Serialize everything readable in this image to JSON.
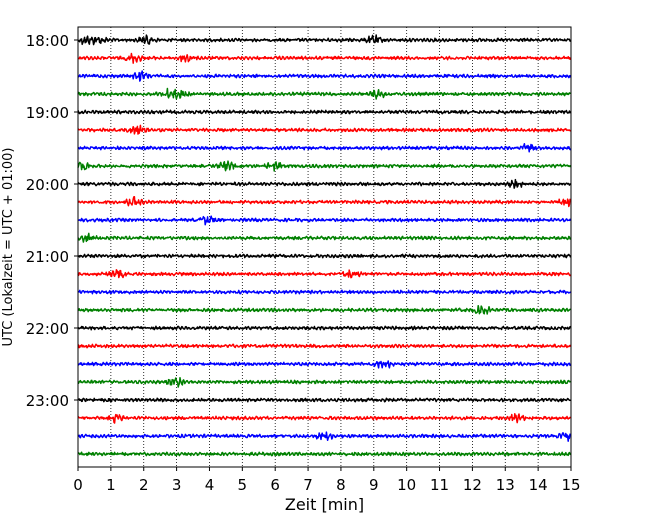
{
  "chart_data": {
    "type": "line",
    "title": "",
    "xlabel": "Zeit  [min]",
    "ylabel": "UTC (Lokalzeit = UTC + 01:00)",
    "xlim": [
      0,
      15
    ],
    "x_ticks": [
      0,
      1,
      2,
      3,
      4,
      5,
      6,
      7,
      8,
      9,
      10,
      11,
      12,
      13,
      14,
      15
    ],
    "x_grid": "dotted vertical lines at each minute",
    "y_tick_labels": [
      "18:00",
      "19:00",
      "20:00",
      "21:00",
      "22:00",
      "23:00"
    ],
    "rows_per_hour": 4,
    "minutes_per_row": 15,
    "trace_colors": [
      "#000000",
      "#ff0000",
      "#0000ff",
      "#008000"
    ],
    "rows": [
      {
        "start": "18:00",
        "color": "#000000",
        "spikes_min": [
          0.2,
          0.6,
          2.1,
          9.0
        ]
      },
      {
        "start": "18:15",
        "color": "#ff0000",
        "spikes_min": [
          1.7,
          3.3
        ]
      },
      {
        "start": "18:30",
        "color": "#0000ff",
        "spikes_min": [
          1.9
        ]
      },
      {
        "start": "18:45",
        "color": "#008000",
        "spikes_min": [
          2.7,
          3.1,
          9.1
        ]
      },
      {
        "start": "19:00",
        "color": "#000000",
        "spikes_min": []
      },
      {
        "start": "19:15",
        "color": "#ff0000",
        "spikes_min": [
          1.8
        ]
      },
      {
        "start": "19:30",
        "color": "#0000ff",
        "spikes_min": [
          13.7
        ]
      },
      {
        "start": "19:45",
        "color": "#008000",
        "spikes_min": [
          0.2,
          4.5,
          6.0
        ]
      },
      {
        "start": "20:00",
        "color": "#000000",
        "spikes_min": [
          13.3
        ]
      },
      {
        "start": "20:15",
        "color": "#ff0000",
        "spikes_min": [
          1.7,
          14.9
        ]
      },
      {
        "start": "20:30",
        "color": "#0000ff",
        "spikes_min": [
          3.9
        ]
      },
      {
        "start": "20:45",
        "color": "#008000",
        "spikes_min": [
          0.3
        ]
      },
      {
        "start": "21:00",
        "color": "#000000",
        "spikes_min": []
      },
      {
        "start": "21:15",
        "color": "#ff0000",
        "spikes_min": [
          1.2,
          8.3
        ]
      },
      {
        "start": "21:30",
        "color": "#0000ff",
        "spikes_min": []
      },
      {
        "start": "21:45",
        "color": "#008000",
        "spikes_min": [
          12.3
        ]
      },
      {
        "start": "22:00",
        "color": "#000000",
        "spikes_min": []
      },
      {
        "start": "22:15",
        "color": "#ff0000",
        "spikes_min": []
      },
      {
        "start": "22:30",
        "color": "#0000ff",
        "spikes_min": [
          9.3
        ]
      },
      {
        "start": "22:45",
        "color": "#008000",
        "spikes_min": [
          3.0
        ]
      },
      {
        "start": "23:00",
        "color": "#000000",
        "spikes_min": []
      },
      {
        "start": "23:15",
        "color": "#ff0000",
        "spikes_min": [
          1.1,
          13.3
        ]
      },
      {
        "start": "23:30",
        "color": "#0000ff",
        "spikes_min": [
          7.5,
          14.9
        ]
      },
      {
        "start": "23:45",
        "color": "#008000",
        "spikes_min": []
      }
    ]
  }
}
